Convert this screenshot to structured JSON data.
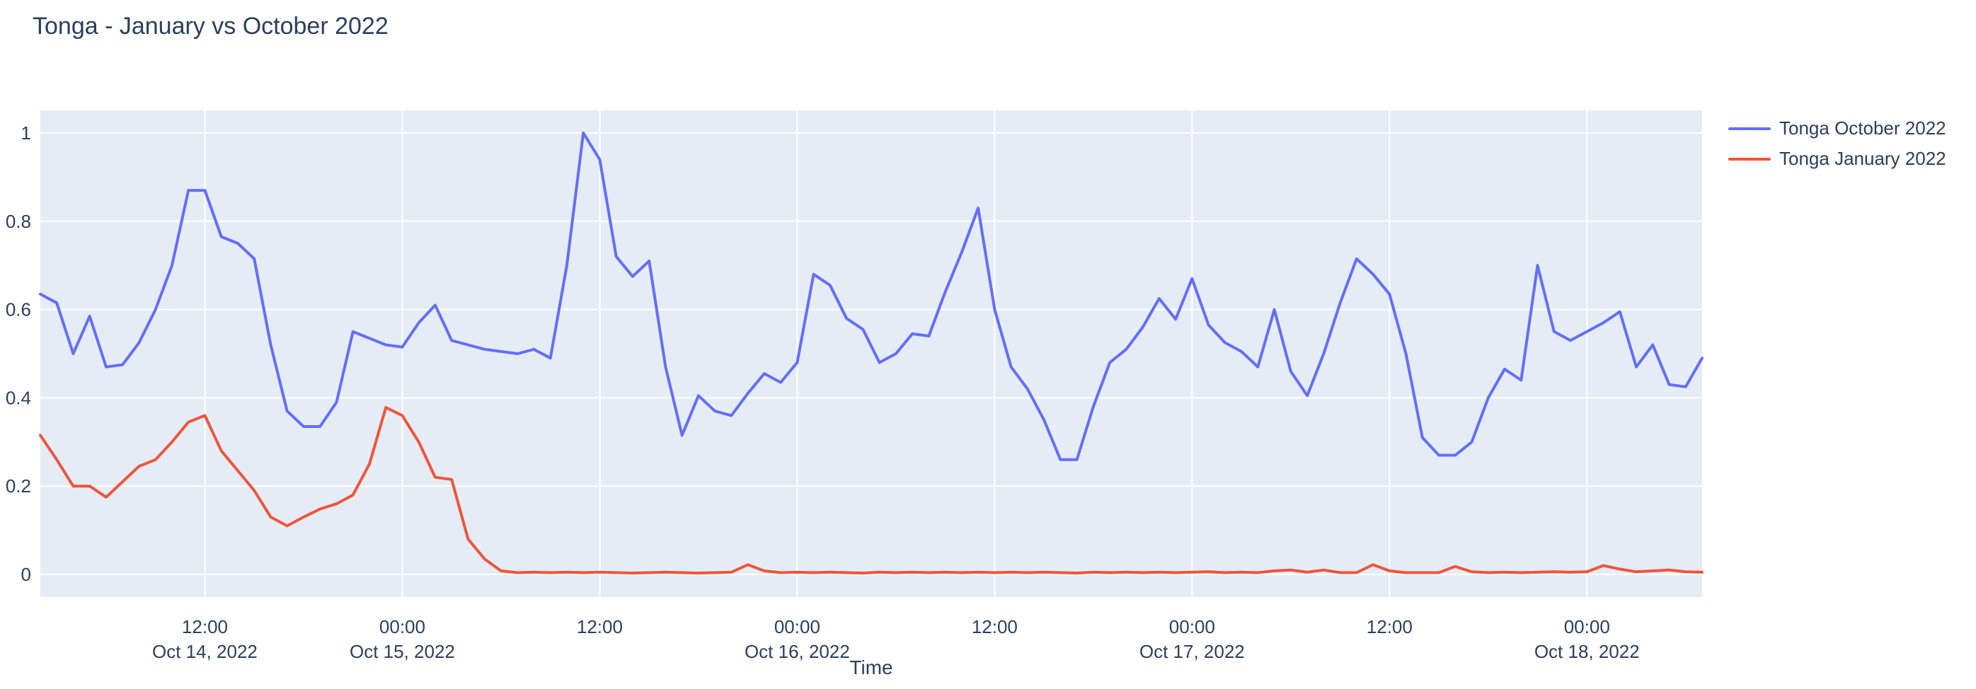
{
  "title": "Tonga - January vs October 2022",
  "legend": [
    {
      "label": "Tonga October 2022",
      "color": "#636EFA"
    },
    {
      "label": "Tonga January 2022",
      "color": "#EF553B"
    }
  ],
  "colors": {
    "plot_background": "#E5ECF6",
    "gridline": "#FFFFFF",
    "text": "#2A3F5F",
    "series_october": "#636EFA",
    "series_january": "#EF553B"
  },
  "chart_data": {
    "type": "line",
    "title": "Tonga - January vs October 2022",
    "xlabel": "Time",
    "ylabel": "",
    "x_start": "2022-10-14 02:00",
    "x_step_hours": 1,
    "n_points": 102,
    "ylim": [
      -0.05,
      1.05
    ],
    "grid": true,
    "legend_position": "right-top",
    "yticks": [
      {
        "v": 0.0,
        "label": "0"
      },
      {
        "v": 0.2,
        "label": "0.2"
      },
      {
        "v": 0.4,
        "label": "0.4"
      },
      {
        "v": 0.6,
        "label": "0.6"
      },
      {
        "v": 0.8,
        "label": "0.8"
      },
      {
        "v": 1.0,
        "label": "1"
      }
    ],
    "xticks": [
      {
        "hour_offset": 10,
        "time": "12:00",
        "date": "Oct 14, 2022"
      },
      {
        "hour_offset": 22,
        "time": "00:00",
        "date": "Oct 15, 2022"
      },
      {
        "hour_offset": 34,
        "time": "12:00",
        "date": ""
      },
      {
        "hour_offset": 46,
        "time": "00:00",
        "date": "Oct 16, 2022"
      },
      {
        "hour_offset": 58,
        "time": "12:00",
        "date": ""
      },
      {
        "hour_offset": 70,
        "time": "00:00",
        "date": "Oct 17, 2022"
      },
      {
        "hour_offset": 82,
        "time": "12:00",
        "date": ""
      },
      {
        "hour_offset": 94,
        "time": "00:00",
        "date": "Oct 18, 2022"
      }
    ],
    "series": [
      {
        "name": "Tonga October 2022",
        "color": "#636EFA",
        "values": [
          0.635,
          0.615,
          0.5,
          0.585,
          0.47,
          0.475,
          0.525,
          0.6,
          0.7,
          0.87,
          0.87,
          0.765,
          0.75,
          0.715,
          0.52,
          0.37,
          0.335,
          0.335,
          0.39,
          0.55,
          0.535,
          0.52,
          0.515,
          0.57,
          0.61,
          0.53,
          0.52,
          0.51,
          0.505,
          0.5,
          0.51,
          0.49,
          0.7,
          1.0,
          0.94,
          0.72,
          0.675,
          0.71,
          0.47,
          0.315,
          0.405,
          0.37,
          0.36,
          0.41,
          0.455,
          0.435,
          0.48,
          0.68,
          0.655,
          0.58,
          0.555,
          0.48,
          0.5,
          0.545,
          0.54,
          0.64,
          0.73,
          0.83,
          0.6,
          0.47,
          0.42,
          0.35,
          0.26,
          0.26,
          0.38,
          0.48,
          0.51,
          0.56,
          0.625,
          0.578,
          0.67,
          0.565,
          0.525,
          0.505,
          0.47,
          0.6,
          0.46,
          0.405,
          0.5,
          0.615,
          0.715,
          0.68,
          0.635,
          0.5,
          0.31,
          0.27,
          0.27,
          0.3,
          0.4,
          0.465,
          0.44,
          0.7,
          0.55,
          0.53,
          0.55,
          0.57,
          0.595,
          0.47,
          0.52,
          0.43,
          0.425,
          0.49
        ]
      },
      {
        "name": "Tonga January 2022",
        "color": "#EF553B",
        "values": [
          0.315,
          0.26,
          0.2,
          0.2,
          0.175,
          0.21,
          0.245,
          0.26,
          0.3,
          0.345,
          0.36,
          0.28,
          0.235,
          0.19,
          0.13,
          0.11,
          0.13,
          0.148,
          0.16,
          0.18,
          0.25,
          0.378,
          0.36,
          0.3,
          0.22,
          0.215,
          0.08,
          0.035,
          0.008,
          0.004,
          0.005,
          0.004,
          0.005,
          0.004,
          0.005,
          0.004,
          0.003,
          0.004,
          0.005,
          0.004,
          0.003,
          0.004,
          0.005,
          0.022,
          0.008,
          0.004,
          0.005,
          0.004,
          0.005,
          0.004,
          0.003,
          0.005,
          0.004,
          0.005,
          0.004,
          0.005,
          0.004,
          0.005,
          0.004,
          0.005,
          0.004,
          0.005,
          0.004,
          0.003,
          0.005,
          0.004,
          0.005,
          0.004,
          0.005,
          0.004,
          0.005,
          0.006,
          0.004,
          0.005,
          0.004,
          0.008,
          0.01,
          0.005,
          0.01,
          0.004,
          0.004,
          0.022,
          0.008,
          0.004,
          0.004,
          0.004,
          0.018,
          0.006,
          0.004,
          0.005,
          0.004,
          0.005,
          0.006,
          0.005,
          0.006,
          0.02,
          0.012,
          0.006,
          0.008,
          0.01,
          0.006,
          0.005
        ]
      }
    ]
  }
}
